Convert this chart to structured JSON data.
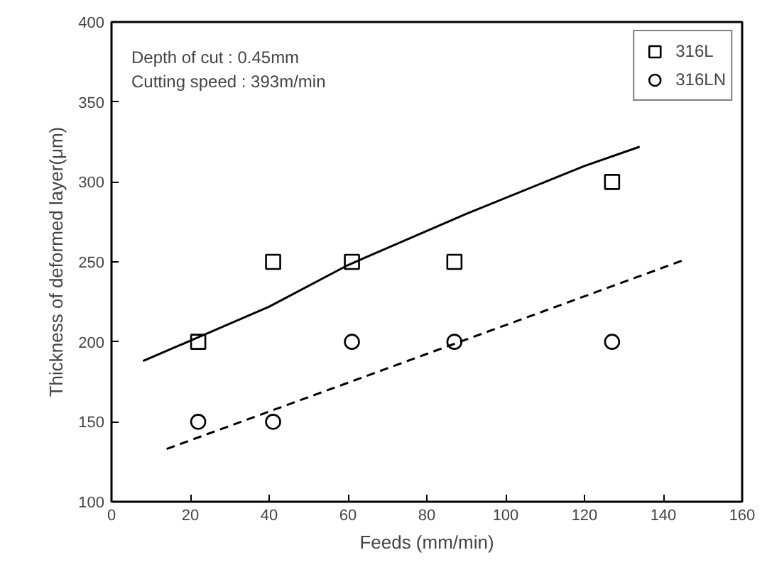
{
  "chart_data": {
    "type": "scatter",
    "xlabel": "Feeds (mm/min)",
    "ylabel": "Thickness of deformed layer(μm)",
    "annotations": [
      "Depth of cut : 0.45mm",
      "Cutting speed : 393m/min"
    ],
    "xlim": [
      0,
      160
    ],
    "xticks": [
      0,
      20,
      40,
      60,
      80,
      100,
      120,
      140,
      160
    ],
    "ylim": [
      100,
      400
    ],
    "yticks": [
      100,
      150,
      200,
      250,
      300,
      350,
      400
    ],
    "grid": false,
    "legend": "top right",
    "series": [
      {
        "name": "316L",
        "color": "#000000",
        "marker": "square",
        "x": [
          22,
          41,
          61,
          87,
          127
        ],
        "values": [
          200,
          250,
          250,
          250,
          300
        ]
      },
      {
        "name": "316LN",
        "color": "#000000",
        "marker": "circle",
        "x": [
          22,
          41,
          61,
          87,
          127
        ],
        "values": [
          150,
          150,
          200,
          200,
          200
        ]
      },
      {
        "type": "line",
        "color": "#000000",
        "line_style": "solid",
        "marker": "none",
        "x": [
          8,
          40,
          60,
          90,
          120,
          134
        ],
        "values": [
          188,
          222,
          248,
          280,
          310,
          322
        ]
      },
      {
        "type": "line",
        "color": "#000000",
        "line_style": "dashed",
        "marker": "none",
        "x": [
          14,
          145
        ],
        "values": [
          133,
          251
        ]
      }
    ]
  }
}
